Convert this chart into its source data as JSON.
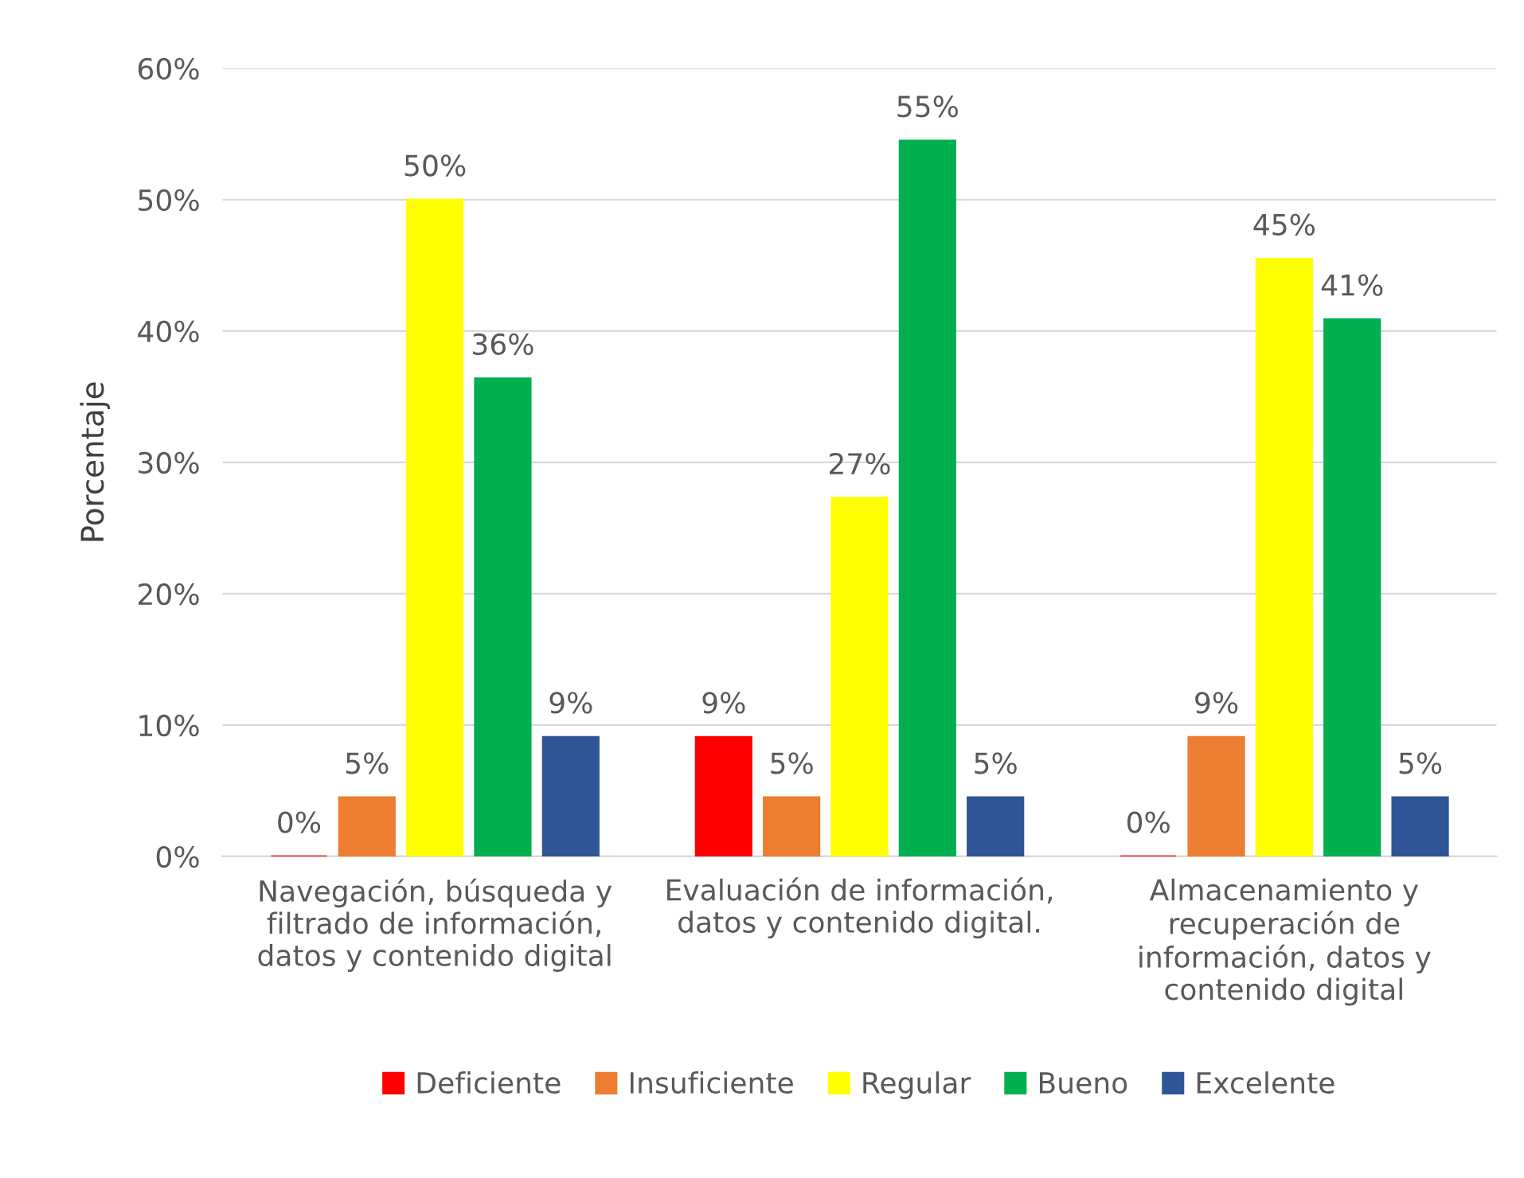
{
  "chart_data": {
    "type": "bar",
    "ylabel": "Porcentaje",
    "categories": [
      "Navegación, búsqueda y\nfiltrado de información,\ndatos y contenido digital",
      "Evaluación de información,\ndatos y contenido digital.",
      "Almacenamiento y\nrecuperación de\ninformación, datos y\ncontenido digital"
    ],
    "series": [
      {
        "name": "Deficiente",
        "color": "#ff0000",
        "values": [
          0,
          9.1,
          0
        ],
        "value_labels": [
          "0%",
          "9%",
          "0%"
        ]
      },
      {
        "name": "Insuficiente",
        "color": "#ed7d31",
        "values": [
          4.5,
          4.5,
          9.1
        ],
        "value_labels": [
          "5%",
          "5%",
          "9%"
        ]
      },
      {
        "name": "Regular",
        "color": "#ffff00",
        "values": [
          50,
          27.3,
          45.5
        ],
        "value_labels": [
          "50%",
          "27%",
          "45%"
        ]
      },
      {
        "name": "Bueno",
        "color": "#00b050",
        "values": [
          36.4,
          54.5,
          40.9
        ],
        "value_labels": [
          "36%",
          "55%",
          "41%"
        ]
      },
      {
        "name": "Excelente",
        "color": "#2f5597",
        "values": [
          9.1,
          4.5,
          4.5
        ],
        "value_labels": [
          "9%",
          "5%",
          "5%"
        ]
      }
    ],
    "ylim": [
      0,
      60
    ],
    "yticks": [
      {
        "value": 0,
        "label": "0%"
      },
      {
        "value": 10,
        "label": "10%"
      },
      {
        "value": 20,
        "label": "20%"
      },
      {
        "value": 30,
        "label": "30%"
      },
      {
        "value": 40,
        "label": "40%"
      },
      {
        "value": 50,
        "label": "50%"
      },
      {
        "value": 60,
        "label": "60%"
      }
    ],
    "grid": "y",
    "legend": "bottom"
  }
}
